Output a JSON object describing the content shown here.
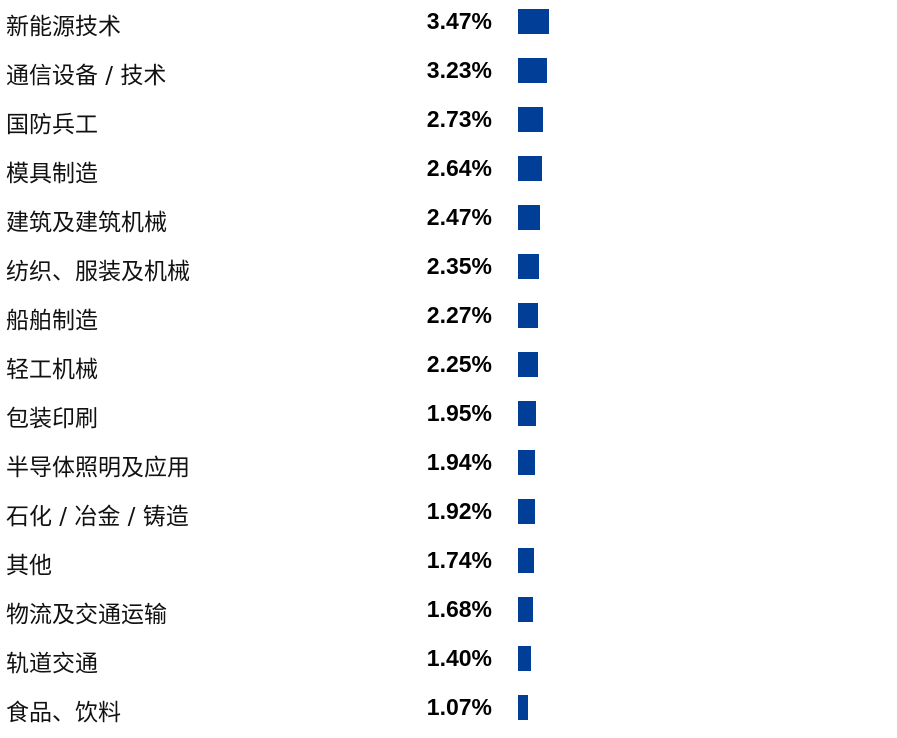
{
  "chart_data": {
    "type": "bar",
    "orientation": "horizontal",
    "bar_color": "#003e98",
    "grid": false,
    "categories": [
      "新能源技术",
      "通信设备 / 技术",
      "国防兵工",
      "模具制造",
      "建筑及建筑机械",
      "纺织、服装及机械",
      "船舶制造",
      "轻工机械",
      "包装印刷",
      "半导体照明及应用",
      "石化 / 冶金 / 铸造",
      "其他",
      "物流及交通运输",
      "轨道交通",
      "食品、饮料"
    ],
    "values": [
      3.47,
      3.23,
      2.73,
      2.64,
      2.47,
      2.35,
      2.27,
      2.25,
      1.95,
      1.94,
      1.92,
      1.74,
      1.68,
      1.4,
      1.07
    ],
    "value_labels": [
      "3.47%",
      "3.23%",
      "2.73%",
      "2.64%",
      "2.47%",
      "2.35%",
      "2.27%",
      "2.25%",
      "1.95%",
      "1.94%",
      "1.92%",
      "1.74%",
      "1.68%",
      "1.40%",
      "1.07%"
    ],
    "unit": "%"
  }
}
